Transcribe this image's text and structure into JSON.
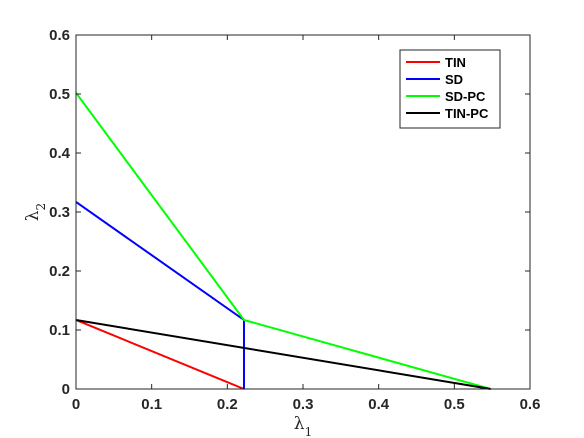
{
  "chart_data": {
    "type": "line",
    "title": "",
    "xlabel": {
      "base": "λ",
      "sub": "1"
    },
    "ylabel": {
      "base": "λ",
      "sub": "2"
    },
    "xlim": [
      0,
      0.6
    ],
    "ylim": [
      0,
      0.6
    ],
    "xticks": [
      0,
      0.1,
      0.2,
      0.3,
      0.4,
      0.5,
      0.6
    ],
    "yticks": [
      0,
      0.1,
      0.2,
      0.3,
      0.4,
      0.5,
      0.6
    ],
    "xtick_labels": [
      "0",
      "0.1",
      "0.2",
      "0.3",
      "0.4",
      "0.5",
      "0.6"
    ],
    "ytick_labels": [
      "0",
      "0.1",
      "0.2",
      "0.3",
      "0.4",
      "0.5",
      "0.6"
    ],
    "grid": false,
    "legend_position": "top-right",
    "series": [
      {
        "name": "TIN",
        "color": "#ff0000",
        "x": [
          0,
          0.222
        ],
        "y": [
          0.117,
          0
        ]
      },
      {
        "name": "SD",
        "color": "#0000ff",
        "x": [
          0,
          0.222,
          0.222
        ],
        "y": [
          0.317,
          0.117,
          0
        ]
      },
      {
        "name": "SD-PC",
        "color": "#00ff00",
        "x": [
          0,
          0.222,
          0.548
        ],
        "y": [
          0.502,
          0.117,
          0
        ]
      },
      {
        "name": "TIN-PC",
        "color": "#000000",
        "x": [
          0,
          0.548
        ],
        "y": [
          0.117,
          0
        ]
      }
    ]
  }
}
